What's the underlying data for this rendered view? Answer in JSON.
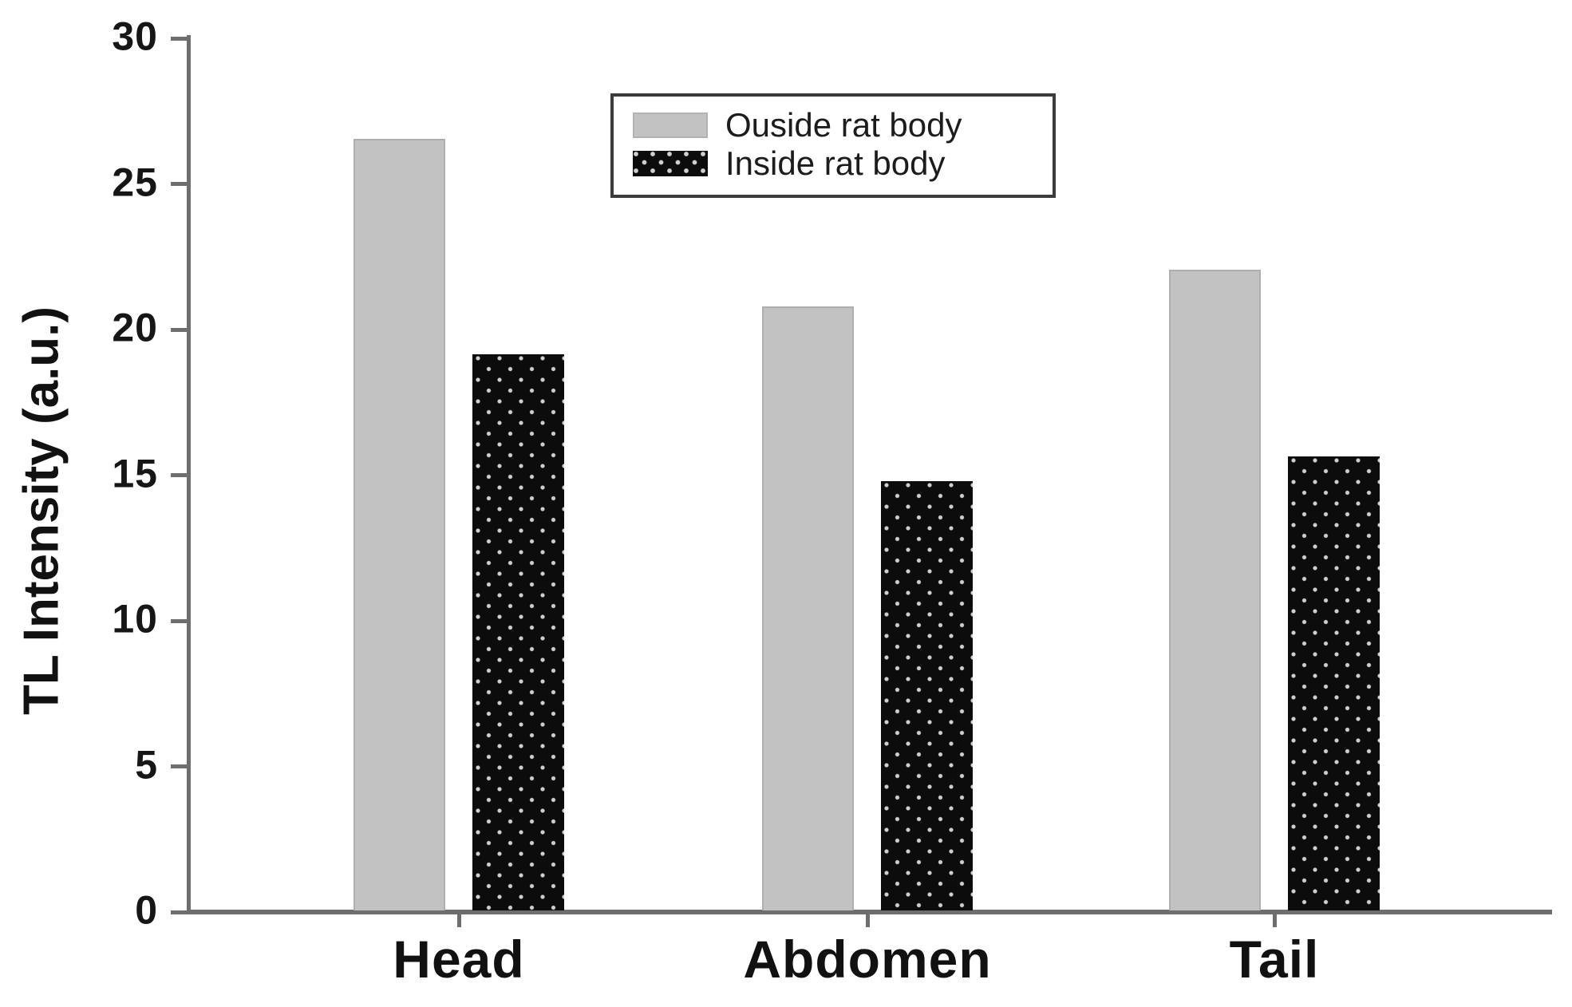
{
  "figure": {
    "background": "#ffffff"
  },
  "y_axis": {
    "title": "TL Intensity (a.u.)",
    "tick_labels": [
      "30",
      "25",
      "20",
      "15",
      "10",
      "5",
      "0"
    ],
    "tick_values": [
      30,
      25,
      20,
      15,
      10,
      5,
      0
    ]
  },
  "x_axis": {
    "categories": [
      "Head",
      "Abdomen",
      "Tail"
    ]
  },
  "legend": {
    "items": [
      {
        "label": "Ouside rat body",
        "swatch": "solid-gray"
      },
      {
        "label": "Inside rat body",
        "swatch": "dotted-black"
      }
    ]
  },
  "colors": {
    "outside_bar": "#c2c2c2",
    "inside_bar": "#0c0c0c",
    "inside_bar_dot": "#d0d0d0",
    "axis": "#6e6e6e",
    "text": "#111111"
  },
  "chart_data": {
    "type": "bar",
    "categories": [
      "Head",
      "Abdomen",
      "Tail"
    ],
    "series": [
      {
        "name": "Ouside rat body",
        "style": "solid-gray",
        "color": "#c2c2c2",
        "values": [
          26.5,
          20.75,
          22.0
        ]
      },
      {
        "name": "Inside rat body",
        "style": "dotted-black",
        "color": "#0c0c0c",
        "values": [
          19.1,
          14.75,
          15.6
        ]
      }
    ],
    "title": "",
    "xlabel": "",
    "ylabel": "TL Intensity (a.u.)",
    "ylim": [
      0,
      30
    ],
    "ytick_step": 5,
    "grid": false,
    "legend_position": "upper-center"
  }
}
